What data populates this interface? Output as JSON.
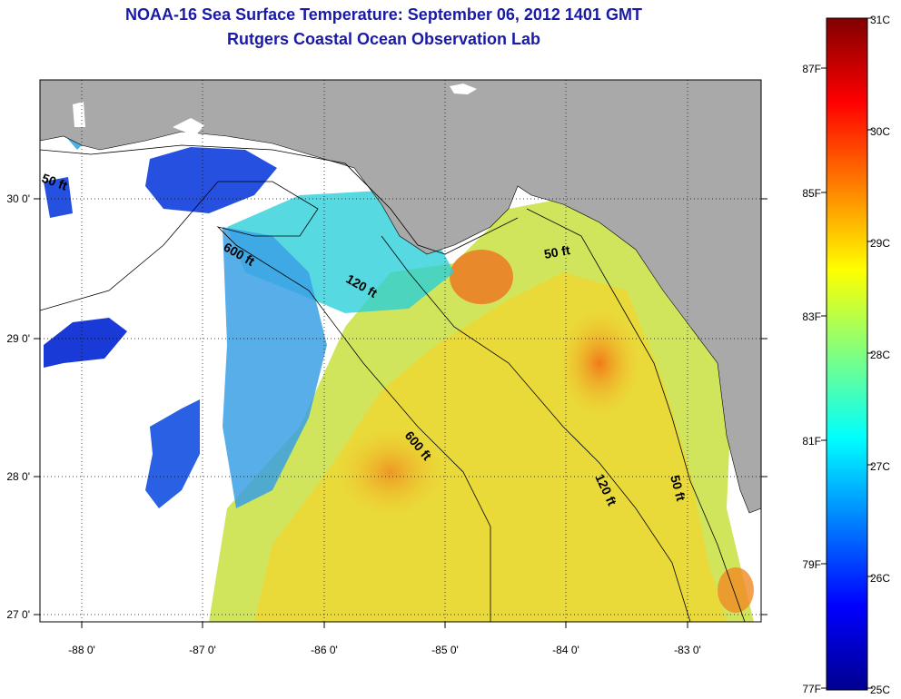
{
  "header": {
    "title": "NOAA-16 Sea Surface Temperature:  September 06, 2012 1401 GMT",
    "subtitle": "Rutgers Coastal Ocean Observation Lab"
  },
  "map": {
    "lon_labels": [
      "-88 0'",
      "-87 0'",
      "-86 0'",
      "-85 0'",
      "-84 0'",
      "-83 0'"
    ],
    "lat_labels": [
      "30 0'",
      "29 0'",
      "28 0'",
      "27 0'"
    ],
    "contours": [
      {
        "label": "50 ft"
      },
      {
        "label": "600 ft"
      },
      {
        "label": "120 ft"
      },
      {
        "label": "50 ft"
      },
      {
        "label": "600 ft"
      },
      {
        "label": "120 ft"
      },
      {
        "label": "50 ft"
      }
    ],
    "colors": {
      "land": "#a9a9a9",
      "cloud": "#ffffff",
      "coast": "#000000"
    }
  },
  "colorbar": {
    "celsius_labels": [
      "31C",
      "30C",
      "29C",
      "28C",
      "27C",
      "26C",
      "25C"
    ],
    "fahrenheit_labels": [
      "87F",
      "85F",
      "83F",
      "81F",
      "79F",
      "77F"
    ]
  }
}
